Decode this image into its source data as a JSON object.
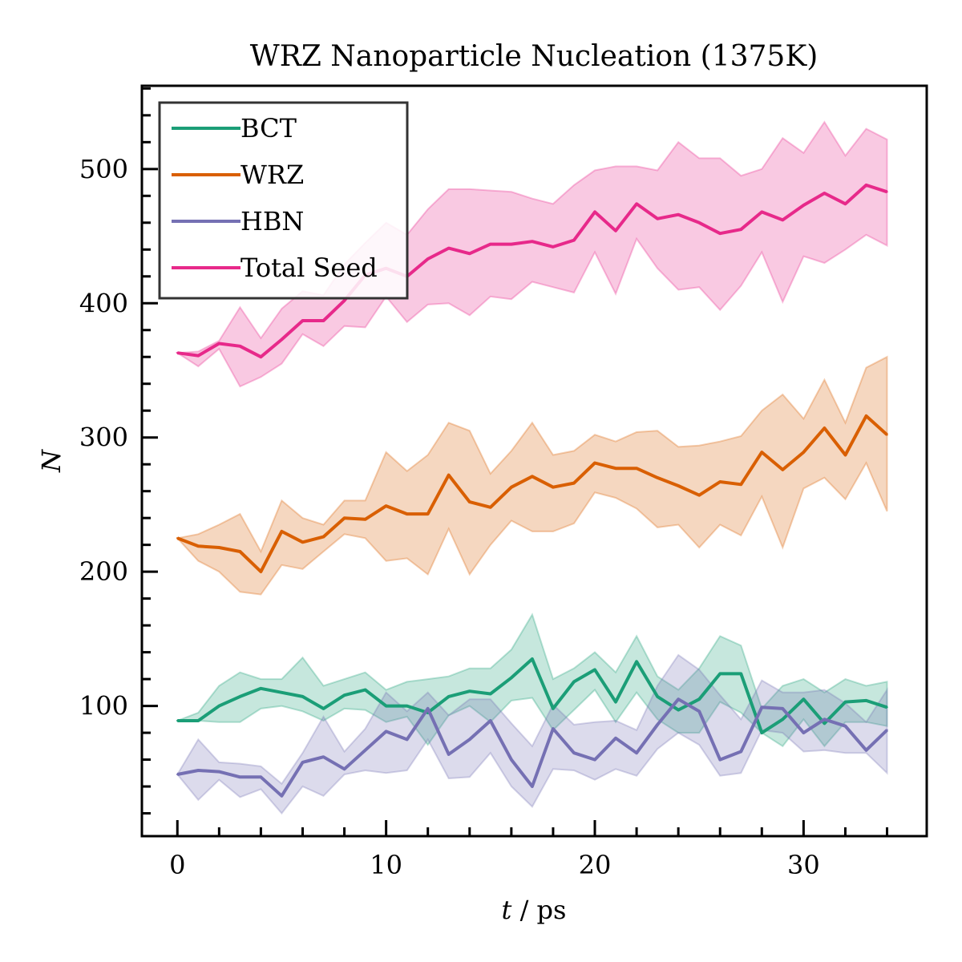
{
  "chart_data": {
    "type": "line",
    "title": "WRZ Nanoparticle Nucleation (1375K)",
    "xlabel_var": "t",
    "xlabel_sep": " / ",
    "xlabel_unit": "ps",
    "ylabel": "N",
    "xlim": [
      -1.7,
      35.9
    ],
    "ylim": [
      3,
      562
    ],
    "x_ticks": [
      0,
      10,
      20,
      30
    ],
    "x_tick_labels": [
      "0",
      "10",
      "20",
      "30"
    ],
    "x_minor_step": 2,
    "y_ticks": [
      100,
      200,
      300,
      400,
      500
    ],
    "y_tick_labels": [
      "100",
      "200",
      "300",
      "400",
      "500"
    ],
    "y_minor_step": 20,
    "grid": false,
    "legend_position": "top-left",
    "x": [
      0,
      1,
      2,
      3,
      4,
      5,
      6,
      7,
      8,
      9,
      10,
      11,
      12,
      13,
      14,
      15,
      16,
      17,
      18,
      19,
      20,
      21,
      22,
      23,
      24,
      25,
      26,
      27,
      28,
      29,
      30,
      31,
      32,
      33,
      34
    ],
    "series": [
      {
        "name": "BCT",
        "color": "#1b9e77",
        "values": [
          89,
          89,
          100,
          107,
          113,
          110,
          107,
          98,
          108,
          112,
          100,
          100,
          95,
          107,
          111,
          109,
          121,
          135,
          98,
          118,
          127,
          103,
          133,
          107,
          97,
          105,
          124,
          124,
          80,
          90,
          105,
          87,
          103,
          104,
          99
        ],
        "lower": [
          89,
          89,
          88,
          88,
          98,
          100,
          96,
          89,
          98,
          97,
          88,
          92,
          71,
          93,
          100,
          88,
          104,
          106,
          82,
          97,
          112,
          88,
          110,
          90,
          80,
          80,
          103,
          95,
          80,
          70,
          90,
          70,
          88,
          88,
          85
        ],
        "upper": [
          89,
          95,
          115,
          125,
          120,
          120,
          136,
          115,
          120,
          125,
          112,
          118,
          120,
          122,
          128,
          128,
          142,
          168,
          120,
          128,
          140,
          125,
          152,
          122,
          112,
          128,
          152,
          145,
          98,
          115,
          120,
          110,
          120,
          115,
          118
        ]
      },
      {
        "name": "WRZ",
        "color": "#d95f02",
        "values": [
          225,
          219,
          218,
          215,
          200,
          230,
          222,
          226,
          240,
          239,
          249,
          243,
          243,
          272,
          252,
          248,
          263,
          271,
          263,
          266,
          281,
          277,
          277,
          270,
          264,
          257,
          267,
          265,
          289,
          276,
          289,
          307,
          287,
          316,
          302
        ],
        "lower": [
          225,
          208,
          200,
          185,
          183,
          205,
          202,
          215,
          228,
          225,
          208,
          210,
          198,
          232,
          198,
          220,
          238,
          230,
          230,
          236,
          259,
          255,
          247,
          233,
          235,
          218,
          235,
          227,
          256,
          218,
          262,
          270,
          254,
          281,
          245
        ],
        "upper": [
          225,
          228,
          235,
          243,
          215,
          253,
          240,
          235,
          253,
          253,
          289,
          275,
          287,
          311,
          305,
          273,
          290,
          311,
          287,
          290,
          302,
          297,
          304,
          305,
          293,
          294,
          297,
          301,
          320,
          332,
          314,
          343,
          311,
          352,
          360
        ]
      },
      {
        "name": "HBN",
        "color": "#7570b3",
        "values": [
          49,
          52,
          51,
          47,
          47,
          33,
          58,
          62,
          53,
          67,
          81,
          75,
          98,
          64,
          75,
          89,
          60,
          40,
          83,
          65,
          60,
          76,
          65,
          86,
          105,
          96,
          60,
          66,
          99,
          98,
          80,
          90,
          85,
          67,
          82
        ],
        "lower": [
          49,
          30,
          45,
          32,
          38,
          20,
          40,
          33,
          49,
          52,
          50,
          52,
          75,
          46,
          47,
          65,
          40,
          25,
          53,
          52,
          45,
          53,
          48,
          68,
          80,
          71,
          48,
          50,
          82,
          80,
          66,
          67,
          65,
          65,
          50
        ],
        "upper": [
          49,
          75,
          58,
          57,
          55,
          42,
          65,
          92,
          66,
          83,
          110,
          96,
          110,
          93,
          105,
          105,
          87,
          70,
          101,
          86,
          88,
          89,
          82,
          115,
          138,
          127,
          108,
          90,
          119,
          110,
          110,
          112,
          102,
          88,
          112
        ]
      },
      {
        "name": "Total Seed",
        "color": "#e7298a",
        "values": [
          363,
          361,
          370,
          368,
          360,
          373,
          387,
          387,
          402,
          421,
          426,
          420,
          433,
          441,
          437,
          444,
          444,
          446,
          442,
          447,
          468,
          454,
          474,
          463,
          466,
          460,
          452,
          455,
          468,
          462,
          473,
          482,
          474,
          488,
          483
        ],
        "lower": [
          363,
          353,
          366,
          338,
          345,
          355,
          377,
          368,
          383,
          382,
          405,
          386,
          399,
          400,
          391,
          405,
          403,
          416,
          412,
          408,
          438,
          407,
          448,
          426,
          410,
          412,
          395,
          413,
          438,
          401,
          435,
          430,
          440,
          451,
          443
        ],
        "upper": [
          363,
          364,
          372,
          397,
          374,
          396,
          409,
          406,
          429,
          445,
          460,
          451,
          470,
          485,
          485,
          484,
          483,
          478,
          474,
          488,
          499,
          502,
          502,
          499,
          520,
          508,
          508,
          495,
          500,
          523,
          512,
          535,
          510,
          530,
          522
        ]
      }
    ]
  }
}
